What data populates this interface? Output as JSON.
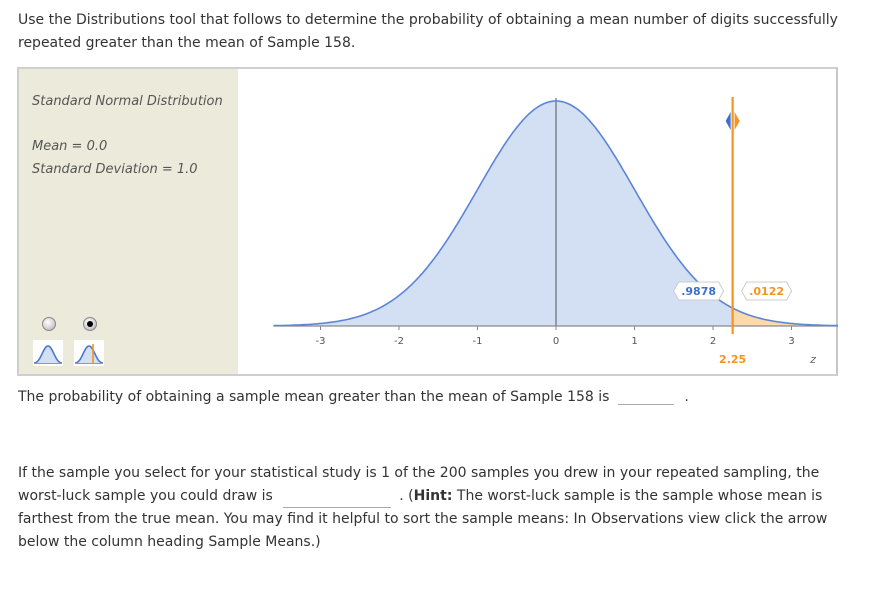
{
  "intro": {
    "text": "Use the Distributions tool that follows to determine the probability of obtaining a mean number of digits successfully repeated greater than the mean of Sample 158."
  },
  "tool": {
    "distribution_name": "Standard Normal Distribution",
    "mean_label": "Mean = 0.0",
    "sd_label": "Standard Deviation = 1.0",
    "modes": [
      {
        "name": "density-view",
        "icon": "bell-curve-icon",
        "selected": false
      },
      {
        "name": "cutoff-view",
        "icon": "bell-curve-cutoff-icon",
        "selected": true
      }
    ],
    "colors": {
      "panel_bg": "#ecebdb",
      "curve": "#5b85d6",
      "fill_left": "#d3dff3",
      "fill_right": "#fcd9a8",
      "cutoff": "#f7931e",
      "left_label": "#3f6fcc",
      "right_label": "#f7931e"
    }
  },
  "chart_data": {
    "type": "area",
    "title": "Standard Normal Distribution",
    "xlabel": "z",
    "ylabel": "",
    "x_ticks": [
      "-3",
      "-2",
      "-1",
      "0",
      "1",
      "2",
      "3"
    ],
    "xlim": [
      -3.6,
      3.6
    ],
    "mean": 0.0,
    "sd": 1.0,
    "cutoff": 2.25,
    "cutoff_label": "2.25",
    "left_area_label": ".9878",
    "right_area_label": ".0122",
    "left_area": 0.9878,
    "right_area": 0.0122
  },
  "q1": {
    "text": "The probability of obtaining a sample mean greater than the mean of Sample 158 is",
    "answer": "",
    "end": "."
  },
  "q2": {
    "text_before": "If the sample you select for your statistical study is 1 of the 200 samples you drew in your repeated sampling, the worst-luck sample you could draw is",
    "answer": "",
    "text_mid": ". (",
    "hint_label": "Hint:",
    "text_after": " The worst-luck sample is the sample whose mean is farthest from the true mean. You may find it helpful to sort the sample means: In Observations view click the arrow below the column heading Sample Means.)"
  }
}
